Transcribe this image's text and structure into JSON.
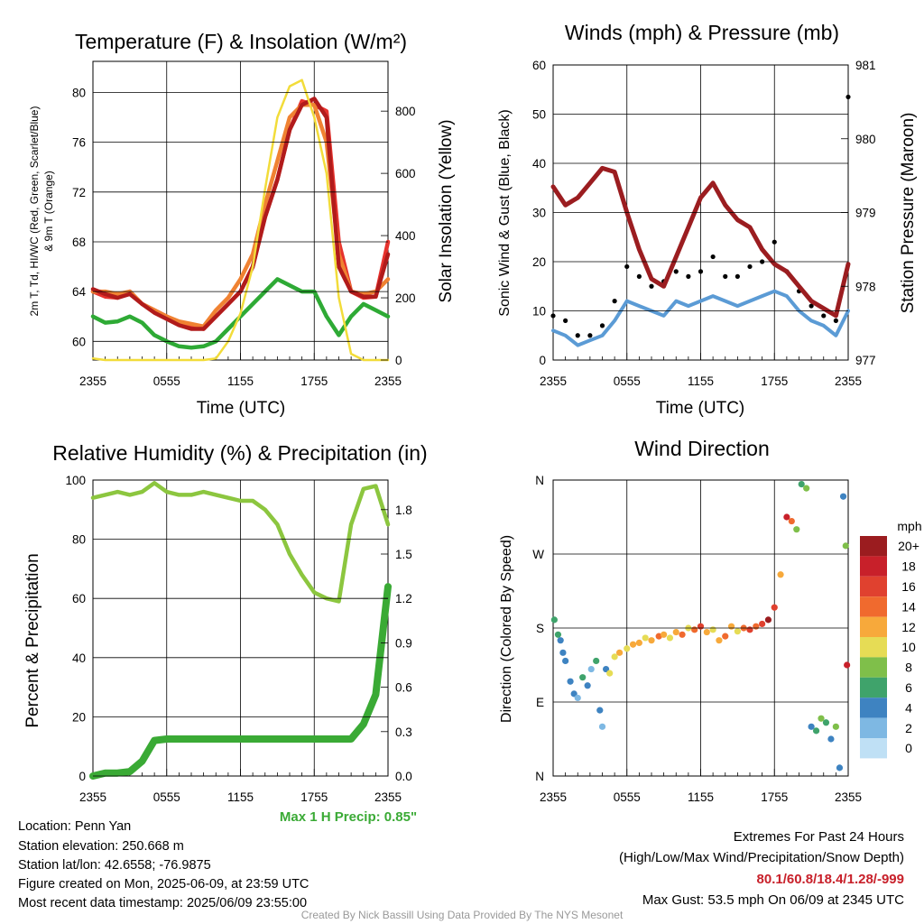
{
  "panels": {
    "temperature": {
      "title": "Temperature (F) & Insolation (W/m²)",
      "xlabel": "Time (UTC)",
      "ylabel_left_line1": "2m T, Td, HI/WC (Red, Green, Scarlet/Blue)",
      "ylabel_left_line2": "& 9m T (Orange)",
      "ylabel_right": "Solar Insolation (Yellow)"
    },
    "winds": {
      "title": "Winds (mph) & Pressure (mb)",
      "xlabel": "Time (UTC)",
      "ylabel_left": "Sonic Wind & Gust (Blue, Black)",
      "ylabel_right": "Station Pressure (Maroon)"
    },
    "humidity": {
      "title": "Relative Humidity (%) & Precipitation (in)",
      "ylabel_left": "Percent & Precipitation",
      "note": "Max 1 H Precip: 0.85\""
    },
    "direction": {
      "title": "Wind Direction",
      "ylabel_left": "Direction (Colored By Speed)",
      "legend_title": "mph"
    }
  },
  "chart_data": [
    {
      "type": "line",
      "id": "temperature",
      "x_ticks": [
        "2355",
        "0555",
        "1155",
        "1755",
        "2355"
      ],
      "ylim_left": [
        58.5,
        82.5
      ],
      "y_ticks_left": [
        60,
        64,
        68,
        72,
        76,
        80
      ],
      "ylim_right": [
        0,
        960
      ],
      "y_ticks_right": [
        0,
        200,
        400,
        600,
        800
      ],
      "x_hours": [
        0,
        1,
        2,
        3,
        4,
        5,
        6,
        7,
        8,
        9,
        10,
        11,
        12,
        13,
        14,
        15,
        16,
        17,
        18,
        19,
        20,
        21,
        22,
        23,
        24
      ],
      "series": [
        {
          "color": "#e6322d",
          "values": [
            64,
            63.6,
            63.5,
            64,
            63,
            62.5,
            62,
            61.5,
            61.2,
            61,
            62,
            63,
            64,
            66,
            70,
            73,
            77,
            79.3,
            79,
            78.5,
            68,
            64,
            63.5,
            63.6,
            68
          ]
        },
        {
          "color": "#f08232",
          "values": [
            64,
            64,
            63.8,
            64,
            63,
            62.5,
            62,
            61.6,
            61.4,
            61.2,
            62.5,
            63.5,
            65,
            67,
            71,
            74.5,
            78,
            79,
            79,
            76,
            67,
            64,
            63.8,
            64,
            65
          ]
        },
        {
          "color": "#b11b1b",
          "values": [
            64.2,
            63.8,
            63.5,
            63.8,
            63,
            62.3,
            61.8,
            61.3,
            61,
            61,
            62,
            63,
            64,
            66,
            70,
            73,
            77,
            79,
            79.5,
            78,
            66,
            64,
            63.6,
            63.6,
            67
          ]
        },
        {
          "color": "#2eaa35",
          "values": [
            62,
            61.5,
            61.6,
            62,
            61.5,
            60.5,
            60,
            59.6,
            59.5,
            59.6,
            60,
            61,
            62,
            63,
            64,
            65,
            64.5,
            64,
            64,
            62,
            60.5,
            62,
            63,
            62.5,
            62
          ]
        },
        {
          "color": "#f2dc3a",
          "values": [
            5,
            0,
            0,
            0,
            0,
            0,
            0,
            0,
            0,
            0,
            5,
            60,
            150,
            300,
            550,
            780,
            880,
            900,
            780,
            600,
            200,
            20,
            0,
            0,
            0
          ]
        }
      ]
    },
    {
      "type": "line",
      "id": "winds",
      "x_ticks": [
        "2355",
        "0555",
        "1155",
        "1755",
        "2355"
      ],
      "ylim_left": [
        0,
        60
      ],
      "y_ticks_left": [
        0,
        10,
        20,
        30,
        40,
        50,
        60
      ],
      "ylim_right": [
        977,
        981
      ],
      "y_ticks_right": [
        977,
        978,
        979,
        980,
        981
      ],
      "x_hours": [
        0,
        1,
        2,
        3,
        4,
        5,
        6,
        7,
        8,
        9,
        10,
        11,
        12,
        13,
        14,
        15,
        16,
        17,
        18,
        19,
        20,
        21,
        22,
        23,
        24
      ],
      "series": [
        {
          "color": "#5b9bd5",
          "values": [
            6,
            5,
            3,
            4,
            5,
            8,
            12,
            11,
            10,
            9,
            12,
            11,
            12,
            13,
            12,
            11,
            12,
            13,
            14,
            13,
            10,
            8,
            7,
            5,
            10
          ]
        },
        {
          "color": "#000000",
          "values": [
            9,
            8,
            5,
            5,
            7,
            12,
            19,
            17,
            15,
            16,
            18,
            17,
            18,
            21,
            17,
            17,
            19,
            20,
            24,
            18,
            14,
            11,
            9,
            8,
            53.5
          ]
        },
        {
          "color": "#9b1d20",
          "values": [
            979.35,
            979.1,
            979.2,
            979.4,
            979.6,
            979.55,
            979.0,
            978.5,
            978.1,
            978.0,
            978.4,
            978.8,
            979.2,
            979.4,
            979.1,
            978.9,
            978.8,
            978.5,
            978.3,
            978.2,
            978.0,
            977.8,
            977.7,
            977.6,
            978.3
          ]
        }
      ]
    },
    {
      "type": "line",
      "id": "humidity",
      "x_ticks": [
        "2355",
        "0555",
        "1155",
        "1755",
        "2355"
      ],
      "ylim_left": [
        0,
        100
      ],
      "y_ticks_left": [
        0,
        20,
        40,
        60,
        80,
        100
      ],
      "ylim_right": [
        0,
        2
      ],
      "y_ticks_right": [
        "0.0",
        "0.3",
        "0.6",
        "0.9",
        "1.2",
        "1.5",
        "1.8"
      ],
      "x_hours": [
        0,
        1,
        2,
        3,
        4,
        5,
        6,
        7,
        8,
        9,
        10,
        11,
        12,
        13,
        14,
        15,
        16,
        17,
        18,
        19,
        20,
        21,
        22,
        23,
        24
      ],
      "series": [
        {
          "color": "#8cc63f",
          "values": [
            94,
            95,
            96,
            95,
            96,
            99,
            96,
            95,
            95,
            96,
            95,
            94,
            93,
            93,
            90,
            85,
            75,
            68,
            62,
            60,
            59,
            85,
            97,
            98,
            85
          ]
        },
        {
          "color": "#3aaa35",
          "values": [
            0,
            0.02,
            0.02,
            0.03,
            0.1,
            0.24,
            0.25,
            0.25,
            0.25,
            0.25,
            0.25,
            0.25,
            0.25,
            0.25,
            0.25,
            0.25,
            0.25,
            0.25,
            0.25,
            0.25,
            0.25,
            0.25,
            0.35,
            0.55,
            1.28
          ]
        }
      ]
    },
    {
      "type": "scatter",
      "id": "direction",
      "x_ticks": [
        "2355",
        "0555",
        "1155",
        "1755",
        "2355"
      ],
      "y_ticks_left": [
        "N",
        "E",
        "S",
        "W",
        "N"
      ],
      "ylim_left": [
        0,
        360
      ],
      "legend": {
        "labels": [
          "20+",
          "18",
          "16",
          "14",
          "12",
          "10",
          "8",
          "6",
          "4",
          "2",
          "0"
        ],
        "colors": [
          "#9b1c1f",
          "#c8202a",
          "#e0412f",
          "#f06a2e",
          "#f7a93b",
          "#e6dc55",
          "#7fbf4a",
          "#3fa36b",
          "#3e83c1",
          "#7eb8e3",
          "#bfe0f5"
        ]
      },
      "points": [
        [
          0.1,
          190,
          6
        ],
        [
          0.4,
          172,
          6
        ],
        [
          0.6,
          165,
          4
        ],
        [
          0.8,
          150,
          4
        ],
        [
          1.0,
          140,
          4
        ],
        [
          1.4,
          115,
          4
        ],
        [
          1.7,
          100,
          4
        ],
        [
          2.0,
          95,
          2
        ],
        [
          2.4,
          120,
          6
        ],
        [
          2.8,
          110,
          4
        ],
        [
          3.1,
          130,
          2
        ],
        [
          3.5,
          140,
          6
        ],
        [
          3.8,
          80,
          4
        ],
        [
          4.0,
          60,
          2
        ],
        [
          4.3,
          130,
          4
        ],
        [
          4.6,
          125,
          10
        ],
        [
          5.0,
          145,
          10
        ],
        [
          5.4,
          150,
          12
        ],
        [
          6.0,
          155,
          10
        ],
        [
          6.5,
          160,
          12
        ],
        [
          7.0,
          162,
          12
        ],
        [
          7.5,
          168,
          10
        ],
        [
          8.0,
          165,
          12
        ],
        [
          8.6,
          170,
          14
        ],
        [
          9.0,
          172,
          12
        ],
        [
          9.5,
          168,
          10
        ],
        [
          10.0,
          175,
          12
        ],
        [
          10.5,
          172,
          14
        ],
        [
          11.0,
          180,
          10
        ],
        [
          11.5,
          178,
          14
        ],
        [
          12.0,
          182,
          16
        ],
        [
          12.5,
          175,
          12
        ],
        [
          13.0,
          178,
          10
        ],
        [
          13.5,
          165,
          12
        ],
        [
          14.0,
          170,
          14
        ],
        [
          14.5,
          182,
          12
        ],
        [
          15.0,
          176,
          10
        ],
        [
          15.5,
          180,
          14
        ],
        [
          16.0,
          178,
          16
        ],
        [
          16.5,
          182,
          14
        ],
        [
          17.0,
          185,
          16
        ],
        [
          17.5,
          190,
          20
        ],
        [
          18.0,
          205,
          16
        ],
        [
          18.5,
          245,
          12
        ],
        [
          19.0,
          315,
          18
        ],
        [
          19.4,
          310,
          14
        ],
        [
          19.8,
          300,
          8
        ],
        [
          20.2,
          355,
          6
        ],
        [
          20.6,
          350,
          8
        ],
        [
          21.0,
          60,
          4
        ],
        [
          21.4,
          55,
          6
        ],
        [
          21.8,
          70,
          8
        ],
        [
          22.2,
          65,
          6
        ],
        [
          22.6,
          45,
          4
        ],
        [
          23.0,
          60,
          8
        ],
        [
          23.3,
          10,
          4
        ],
        [
          23.6,
          340,
          4
        ],
        [
          23.8,
          280,
          8
        ],
        [
          23.9,
          135,
          18
        ]
      ]
    }
  ],
  "footer": {
    "location": "Location: Penn Yan",
    "elevation": "Station elevation: 250.668 m",
    "latlon": "Station lat/lon: 42.6558; -76.9875",
    "created": "Figure created on Mon, 2025-06-09, at 23:59 UTC",
    "recent": "Most recent data timestamp: 2025/06/09 23:55:00",
    "extremes_title": "Extremes For Past 24 Hours",
    "extremes_sub": "(High/Low/Max Wind/Precipitation/Snow Depth)",
    "extremes_values": "80.1/60.8/18.4/1.28/-999",
    "max_gust": "Max Gust: 53.5 mph On 06/09 at 2345 UTC",
    "credit": "Created By Nick Bassill Using Data Provided By The NYS Mesonet"
  }
}
